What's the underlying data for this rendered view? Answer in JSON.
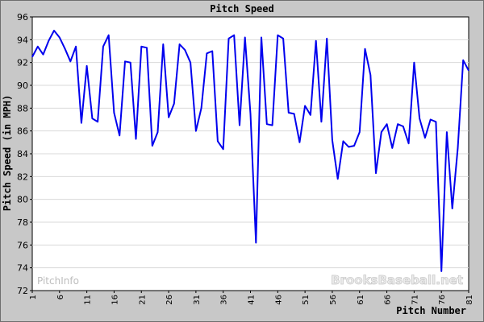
{
  "chart_data": {
    "type": "line",
    "title": "Pitch Speed",
    "xlabel": "Pitch Number",
    "ylabel": "Pitch Speed (in MPH)",
    "xlim": [
      1,
      81
    ],
    "ylim": [
      72,
      96
    ],
    "x_ticks": [
      "1",
      "6",
      "11",
      "16",
      "21",
      "26",
      "31",
      "36",
      "41",
      "46",
      "51",
      "56",
      "61",
      "66",
      "71",
      "76",
      "81"
    ],
    "y_ticks": [
      "72",
      "74",
      "76",
      "78",
      "80",
      "82",
      "84",
      "86",
      "88",
      "90",
      "92",
      "94",
      "96"
    ],
    "grid": true,
    "legend": "none",
    "line_color": "#0000ee",
    "watermarks": [
      "PitchInfo",
      "BrooksBaseball.net"
    ],
    "series": [
      {
        "x": [
          1,
          2,
          3,
          4,
          5,
          6,
          7,
          8,
          9,
          10,
          11,
          12,
          13,
          14,
          15,
          16,
          17,
          18,
          19,
          20,
          21,
          22,
          23,
          24,
          25,
          26,
          27,
          28,
          29,
          30,
          31,
          32,
          33,
          34,
          35,
          36,
          37,
          38,
          39,
          40,
          41,
          42,
          43,
          44,
          45,
          46,
          47,
          48,
          49,
          50,
          51,
          52,
          53,
          54,
          55,
          56,
          57,
          58,
          59,
          60,
          61,
          62,
          63,
          64,
          65,
          66,
          67,
          68,
          69,
          70,
          71,
          72,
          73,
          74,
          75,
          76,
          77,
          78,
          79,
          80,
          81
        ],
        "values": [
          92.5,
          93.4,
          92.7,
          93.9,
          94.8,
          94.2,
          93.2,
          92.1,
          93.4,
          86.7,
          91.7,
          87.1,
          86.8,
          93.4,
          94.4,
          87.6,
          85.6,
          92.1,
          92.0,
          85.3,
          93.4,
          93.3,
          84.7,
          85.9,
          93.6,
          87.2,
          88.4,
          93.6,
          93.1,
          92.0,
          86.0,
          88.0,
          92.8,
          93.0,
          85.1,
          84.4,
          94.1,
          94.4,
          86.5,
          94.2,
          87.5,
          76.2,
          94.2,
          86.6,
          86.5,
          94.4,
          94.1,
          87.6,
          87.5,
          85.0,
          88.2,
          87.4,
          93.9,
          86.8,
          94.1,
          85.2,
          81.8,
          85.1,
          84.6,
          84.7,
          85.9,
          93.2,
          90.9,
          82.3,
          85.9,
          86.6,
          84.5,
          86.6,
          86.4,
          84.9,
          92.0,
          87.1,
          85.4,
          87.0,
          86.8,
          73.7,
          85.9,
          79.2,
          84.5,
          92.2,
          91.3
        ]
      }
    ]
  }
}
